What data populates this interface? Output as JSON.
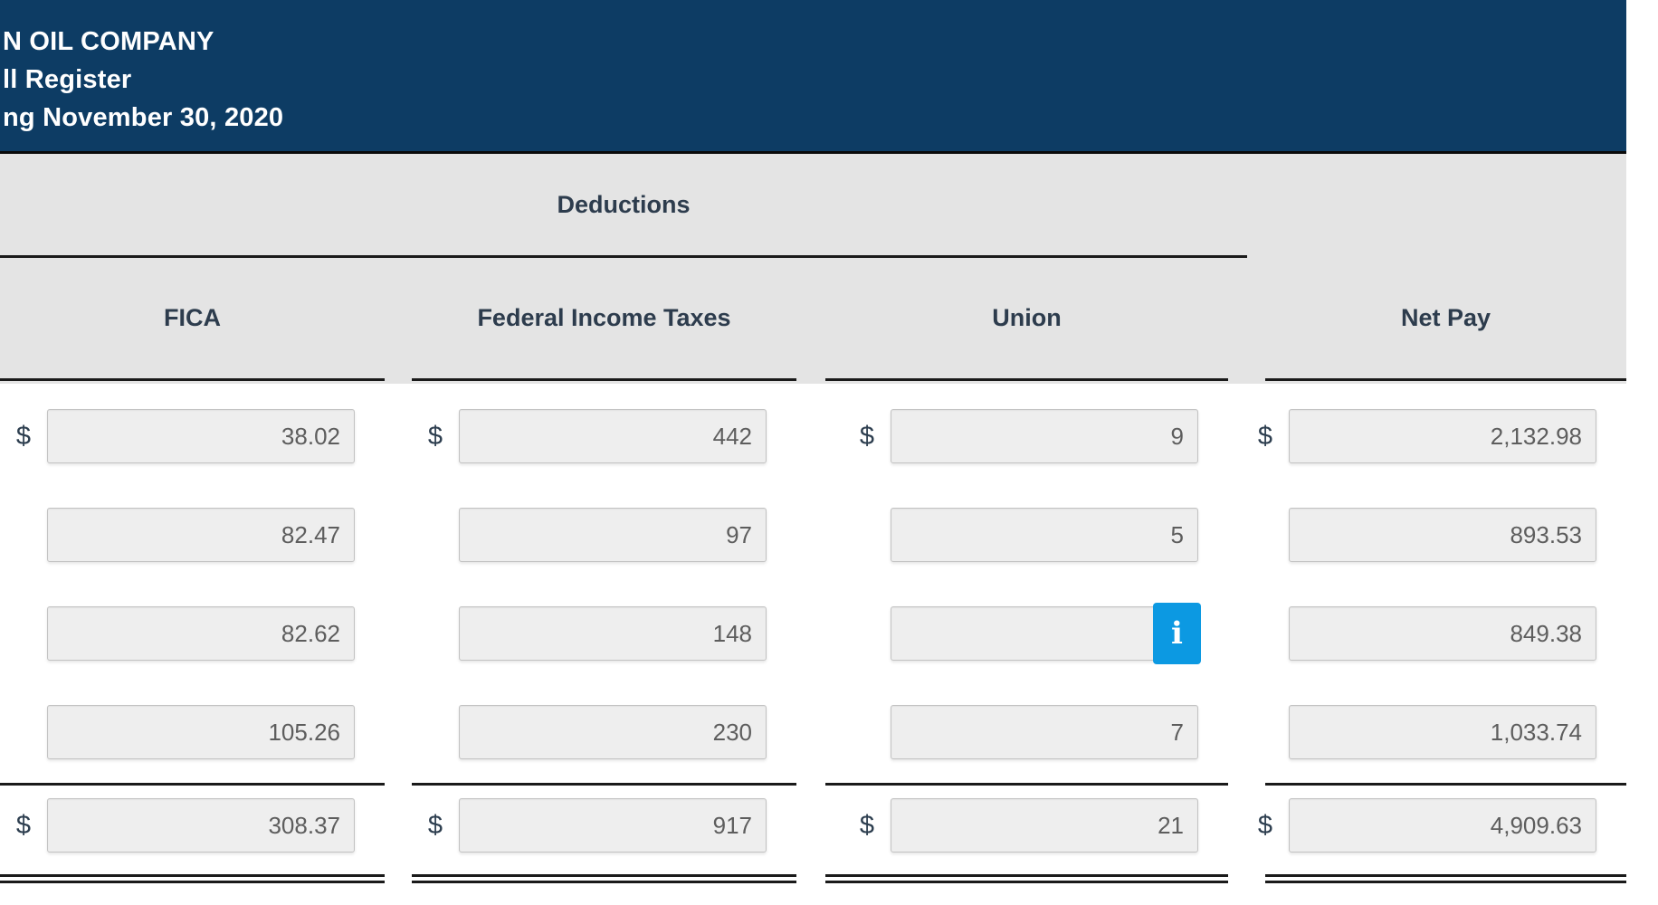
{
  "header": {
    "company_line": "N OIL COMPANY",
    "report_line": "ll Register",
    "period_line": "ng November 30, 2020"
  },
  "table": {
    "group_header": "Deductions",
    "columns": {
      "fica": "FICA",
      "federal": "Federal Income Taxes",
      "union": "Union",
      "net_pay": "Net Pay"
    },
    "currency_symbol": "$",
    "info_button_label": "i",
    "rows": [
      {
        "fica": "38.02",
        "federal": "442",
        "union": "9",
        "net_pay": "2,132.98"
      },
      {
        "fica": "82.47",
        "federal": "97",
        "union": "5",
        "net_pay": "893.53"
      },
      {
        "fica": "82.62",
        "federal": "148",
        "union": "",
        "net_pay": "849.38"
      },
      {
        "fica": "105.26",
        "federal": "230",
        "union": "7",
        "net_pay": "1,033.74"
      }
    ],
    "totals": {
      "fica": "308.37",
      "federal": "917",
      "union": "21",
      "net_pay": "4,909.63"
    }
  },
  "colors": {
    "title_band": "#0d3c64",
    "header_band": "#e4e4e4",
    "info_button": "#0c99e2",
    "input_fill": "#eeeeee",
    "rule": "#1a1a1a",
    "header_text": "#2d3c4d"
  }
}
